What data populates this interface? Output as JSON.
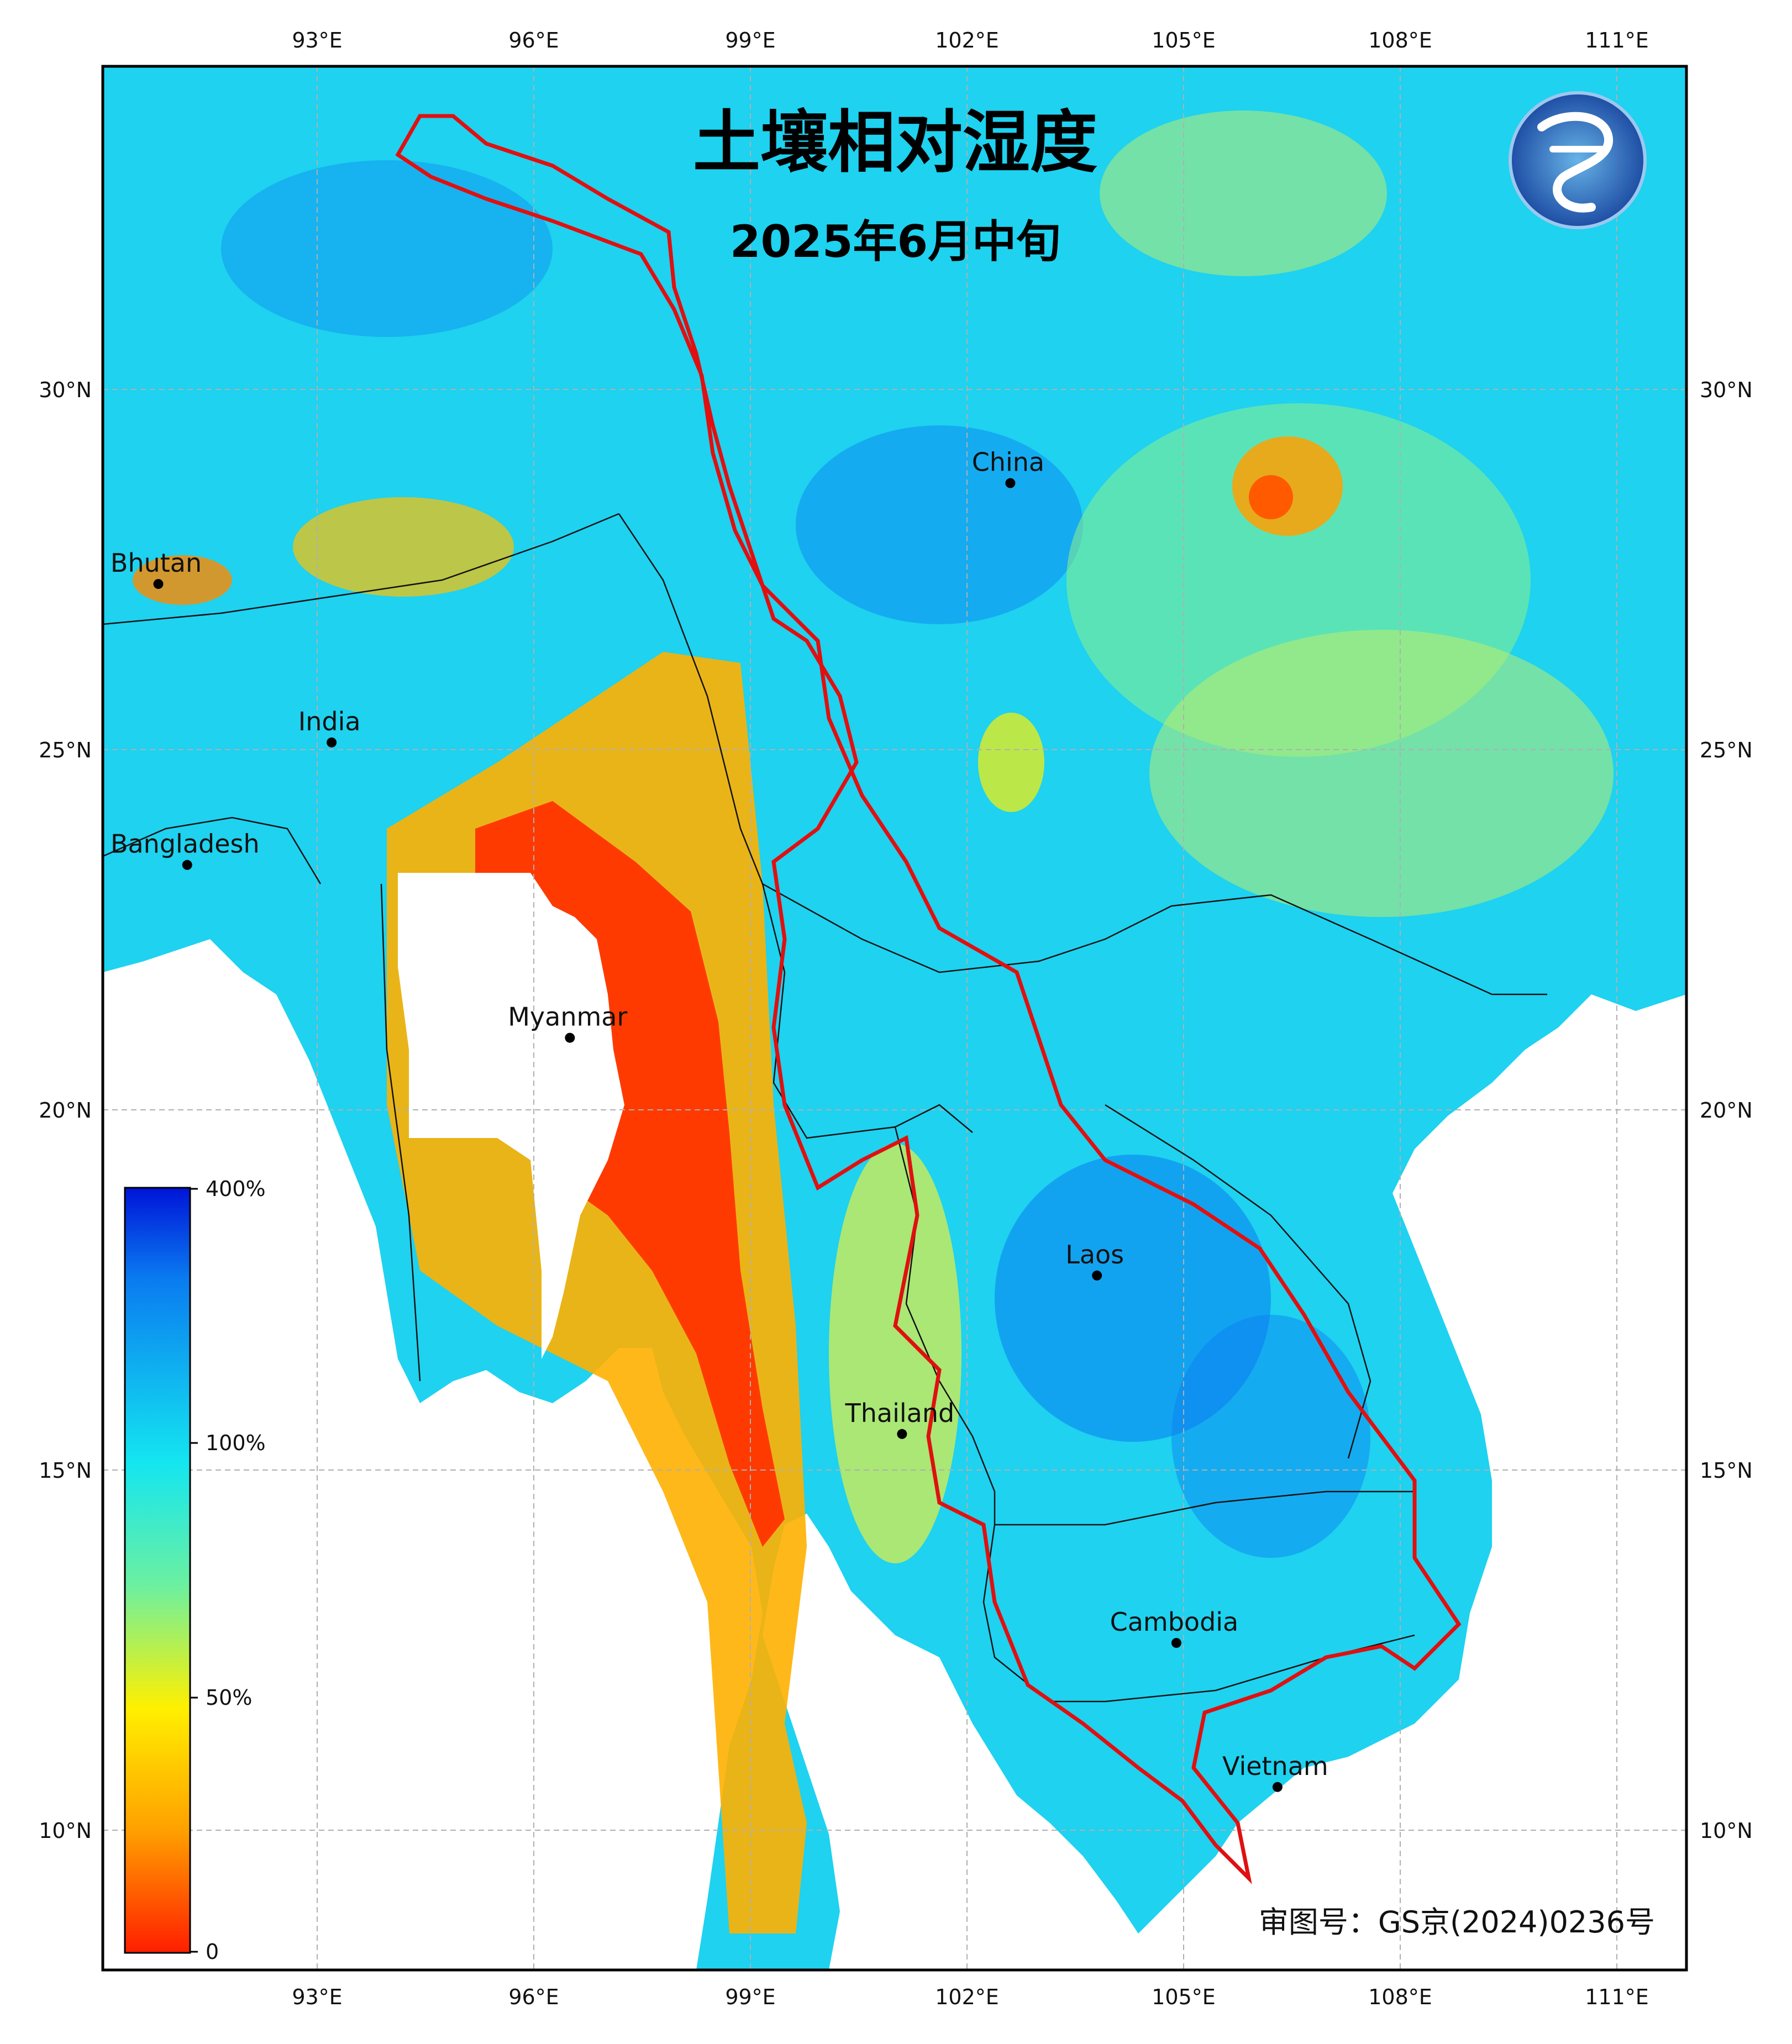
{
  "title": "土壤相对湿度",
  "subtitle": "2025年6月中旬",
  "approval_number": "审图号：GS京(2024)0236号",
  "axes": {
    "longitude_ticks": [
      "93°E",
      "96°E",
      "99°E",
      "102°E",
      "105°E",
      "108°E",
      "111°E"
    ],
    "latitude_ticks": [
      "30°N",
      "25°N",
      "20°N",
      "15°N",
      "10°N"
    ]
  },
  "colorbar": {
    "labels": [
      "400%",
      "100%",
      "50%",
      "0"
    ],
    "colors": [
      "#0014d8",
      "#0a7cf0",
      "#14e6f0",
      "#6cf0a0",
      "#fff000",
      "#ffa000",
      "#ff1e00"
    ]
  },
  "places": [
    {
      "name": "Bhutan",
      "lon": 90.8,
      "lat": 27.3
    },
    {
      "name": "India",
      "lon": 93.2,
      "lat": 25.1
    },
    {
      "name": "Bangladesh",
      "lon": 91.2,
      "lat": 23.4
    },
    {
      "name": "Myanmar",
      "lon": 96.5,
      "lat": 21.0
    },
    {
      "name": "China",
      "lon": 102.6,
      "lat": 28.7
    },
    {
      "name": "Laos",
      "lon": 103.8,
      "lat": 17.7
    },
    {
      "name": "Thailand",
      "lon": 101.1,
      "lat": 15.5
    },
    {
      "name": "Cambodia",
      "lon": 104.9,
      "lat": 12.6
    },
    {
      "name": "Vietnam",
      "lon": 106.3,
      "lat": 10.6
    }
  ],
  "colors": {
    "frame": "#000000",
    "gridline": "#b0b0b0",
    "basin_boundary": "#e01010",
    "wet": "#1ed2f0",
    "dry": "#ff2a00"
  }
}
